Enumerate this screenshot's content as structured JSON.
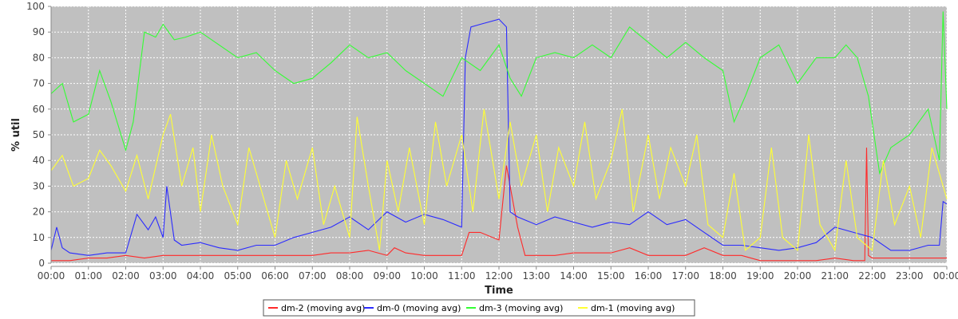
{
  "chart_data": {
    "type": "line",
    "title": "",
    "xlabel": "Time",
    "ylabel": "% util",
    "ylim": [
      0,
      100
    ],
    "yticks": [
      0,
      10,
      20,
      30,
      40,
      50,
      60,
      70,
      80,
      90,
      100
    ],
    "xlim": [
      0,
      24
    ],
    "xticks": [
      {
        "v": 0,
        "label": "00:00"
      },
      {
        "v": 1,
        "label": "01:00"
      },
      {
        "v": 2,
        "label": "02:00"
      },
      {
        "v": 3,
        "label": "03:00"
      },
      {
        "v": 4,
        "label": "04:00"
      },
      {
        "v": 5,
        "label": "05:00"
      },
      {
        "v": 6,
        "label": "06:00"
      },
      {
        "v": 7,
        "label": "07:00"
      },
      {
        "v": 8,
        "label": "08:00"
      },
      {
        "v": 9,
        "label": "09:00"
      },
      {
        "v": 10,
        "label": "10:00"
      },
      {
        "v": 11,
        "label": "11:00"
      },
      {
        "v": 12,
        "label": "12:00"
      },
      {
        "v": 13,
        "label": "13:00"
      },
      {
        "v": 14,
        "label": "14:00"
      },
      {
        "v": 15,
        "label": "15:00"
      },
      {
        "v": 16,
        "label": "16:00"
      },
      {
        "v": 17,
        "label": "17:00"
      },
      {
        "v": 18,
        "label": "18:00"
      },
      {
        "v": 19,
        "label": "19:00"
      },
      {
        "v": 20,
        "label": "20:00"
      },
      {
        "v": 21,
        "label": "21:00"
      },
      {
        "v": 22,
        "label": "22:00"
      },
      {
        "v": 23,
        "label": "23:00"
      },
      {
        "v": 24,
        "label": "00:00"
      }
    ],
    "grid": true,
    "legend_position": "bottom-center",
    "plot_background": "#c0c0c0",
    "series": [
      {
        "name": "dm-2 (moving avg)",
        "color": "#ff2a2a",
        "x": [
          0,
          0.5,
          1,
          1.5,
          2,
          2.5,
          3,
          3.5,
          4,
          4.5,
          5,
          5.5,
          6,
          6.5,
          7,
          7.5,
          8,
          8.5,
          9,
          9.2,
          9.5,
          10,
          10.5,
          11,
          11.2,
          11.5,
          12,
          12.2,
          12.3,
          12.5,
          12.7,
          13,
          13.5,
          14,
          14.5,
          15,
          15.5,
          16,
          16.5,
          17,
          17.5,
          18,
          18.5,
          19,
          19.5,
          20,
          20.5,
          21,
          21.5,
          21.8,
          21.85,
          21.9,
          22,
          22.5,
          23,
          23.5,
          24
        ],
        "y": [
          1,
          1,
          2,
          2,
          3,
          2,
          3,
          3,
          3,
          3,
          3,
          3,
          3,
          3,
          3,
          4,
          4,
          5,
          3,
          6,
          4,
          3,
          3,
          3,
          12,
          12,
          9,
          38,
          30,
          14,
          3,
          3,
          3,
          4,
          4,
          4,
          6,
          3,
          3,
          3,
          6,
          3,
          3,
          1,
          1,
          1,
          1,
          2,
          1,
          1,
          45,
          3,
          2,
          2,
          2,
          2,
          2
        ]
      },
      {
        "name": "dm-0 (moving avg)",
        "color": "#2b2bff",
        "x": [
          0,
          0.15,
          0.3,
          0.5,
          1,
          1.5,
          2,
          2.3,
          2.6,
          2.8,
          3,
          3.1,
          3.3,
          3.5,
          4,
          4.5,
          5,
          5.5,
          6,
          6.5,
          7,
          7.5,
          8,
          8.5,
          9,
          9.5,
          10,
          10.5,
          11,
          11.1,
          11.25,
          11.5,
          12,
          12.2,
          12.3,
          12.5,
          13,
          13.5,
          14,
          14.5,
          15,
          15.5,
          16,
          16.5,
          17,
          17.5,
          18,
          18.5,
          19,
          19.5,
          20,
          20.5,
          21,
          21.5,
          22,
          22.5,
          23,
          23.5,
          23.8,
          23.9,
          24
        ],
        "y": [
          5,
          14,
          6,
          4,
          3,
          4,
          4,
          19,
          13,
          18,
          10,
          30,
          9,
          7,
          8,
          6,
          5,
          7,
          7,
          10,
          12,
          14,
          18,
          13,
          20,
          16,
          19,
          17,
          14,
          80,
          92,
          93,
          95,
          92,
          20,
          18,
          15,
          18,
          16,
          14,
          16,
          15,
          20,
          15,
          17,
          12,
          7,
          7,
          6,
          5,
          6,
          8,
          14,
          12,
          10,
          5,
          5,
          7,
          7,
          24,
          23
        ]
      },
      {
        "name": "dm-3 (moving avg)",
        "color": "#33ff33",
        "x": [
          0,
          0.3,
          0.6,
          1,
          1.3,
          1.6,
          2,
          2.2,
          2.5,
          2.8,
          3,
          3.3,
          3.6,
          4,
          4.5,
          5,
          5.5,
          6,
          6.5,
          7,
          7.5,
          8,
          8.5,
          9,
          9.5,
          10,
          10.5,
          11,
          11.5,
          12,
          12.3,
          12.6,
          13,
          13.5,
          14,
          14.5,
          15,
          15.5,
          16,
          16.5,
          17,
          17.5,
          18,
          18.3,
          18.6,
          19,
          19.5,
          20,
          20.5,
          21,
          21.3,
          21.6,
          21.9,
          22.2,
          22.5,
          23,
          23.5,
          23.8,
          23.9,
          24
        ],
        "y": [
          66,
          70,
          55,
          58,
          75,
          63,
          44,
          55,
          90,
          88,
          93,
          87,
          88,
          90,
          85,
          80,
          82,
          75,
          70,
          72,
          78,
          85,
          80,
          82,
          75,
          70,
          65,
          80,
          75,
          85,
          72,
          65,
          80,
          82,
          80,
          85,
          80,
          92,
          86,
          80,
          86,
          80,
          75,
          55,
          65,
          80,
          85,
          70,
          80,
          80,
          85,
          80,
          65,
          35,
          45,
          50,
          60,
          40,
          98,
          60
        ]
      },
      {
        "name": "dm-1 (moving avg)",
        "color": "#ffff33",
        "x": [
          0,
          0.3,
          0.6,
          1,
          1.3,
          1.6,
          2,
          2.3,
          2.6,
          3,
          3.2,
          3.5,
          3.8,
          4,
          4.3,
          4.6,
          5,
          5.3,
          5.6,
          6,
          6.3,
          6.6,
          7,
          7.3,
          7.6,
          8,
          8.2,
          8.5,
          8.8,
          9,
          9.3,
          9.6,
          10,
          10.3,
          10.6,
          11,
          11.3,
          11.6,
          12,
          12.3,
          12.6,
          13,
          13.3,
          13.6,
          14,
          14.3,
          14.6,
          15,
          15.3,
          15.6,
          16,
          16.3,
          16.6,
          17,
          17.3,
          17.6,
          18,
          18.3,
          18.6,
          19,
          19.3,
          19.6,
          20,
          20.3,
          20.6,
          21,
          21.3,
          21.6,
          22,
          22.3,
          22.6,
          23,
          23.3,
          23.6,
          24
        ],
        "y": [
          36,
          42,
          30,
          33,
          44,
          38,
          28,
          42,
          25,
          50,
          58,
          30,
          45,
          20,
          50,
          30,
          15,
          45,
          30,
          10,
          40,
          25,
          45,
          15,
          30,
          10,
          57,
          30,
          5,
          40,
          20,
          45,
          15,
          55,
          30,
          50,
          20,
          60,
          25,
          55,
          30,
          50,
          20,
          45,
          30,
          55,
          25,
          40,
          60,
          20,
          50,
          25,
          45,
          30,
          50,
          15,
          10,
          35,
          5,
          10,
          45,
          10,
          5,
          50,
          15,
          5,
          40,
          10,
          5,
          40,
          15,
          30,
          10,
          45,
          25
        ]
      }
    ]
  }
}
